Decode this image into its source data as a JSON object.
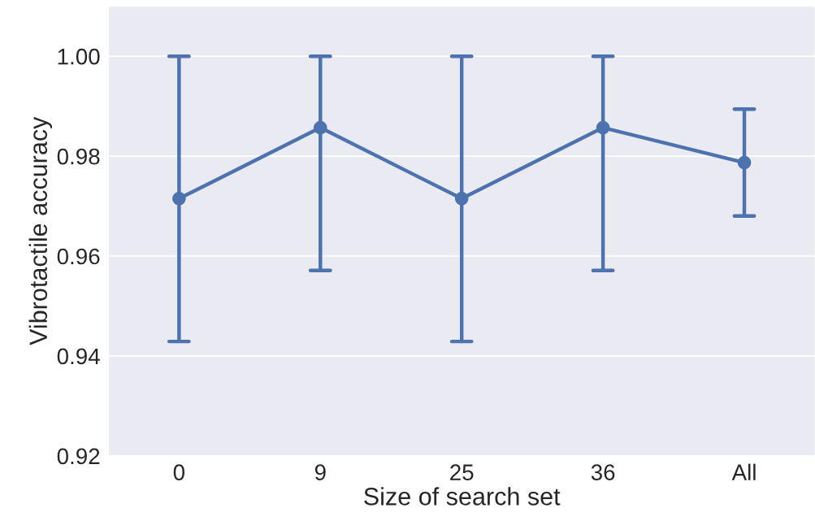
{
  "chart_data": {
    "type": "line",
    "xlabel": "Size of search set",
    "ylabel": "Vibrotactile accuracy",
    "categories": [
      "0",
      "9",
      "25",
      "36",
      "All"
    ],
    "series": [
      {
        "color": "#4c72b0",
        "values": [
          0.9715,
          0.9857,
          0.9715,
          0.9857,
          0.9787
        ],
        "errors": [
          [
            0.9429,
            1.0
          ],
          [
            0.9571,
            1.0
          ],
          [
            0.9429,
            1.0
          ],
          [
            0.9571,
            1.0
          ],
          [
            0.968,
            0.9894
          ]
        ]
      }
    ],
    "ylim": [
      0.92,
      1.01
    ],
    "yticks": [
      {
        "value": 0.92,
        "label": "0.92"
      },
      {
        "value": 0.94,
        "label": "0.94"
      },
      {
        "value": 0.96,
        "label": "0.96"
      },
      {
        "value": 0.98,
        "label": "0.98"
      },
      {
        "value": 1.0,
        "label": "1.00"
      }
    ],
    "grid": "y",
    "marker": "circle",
    "line_style": "solid"
  }
}
